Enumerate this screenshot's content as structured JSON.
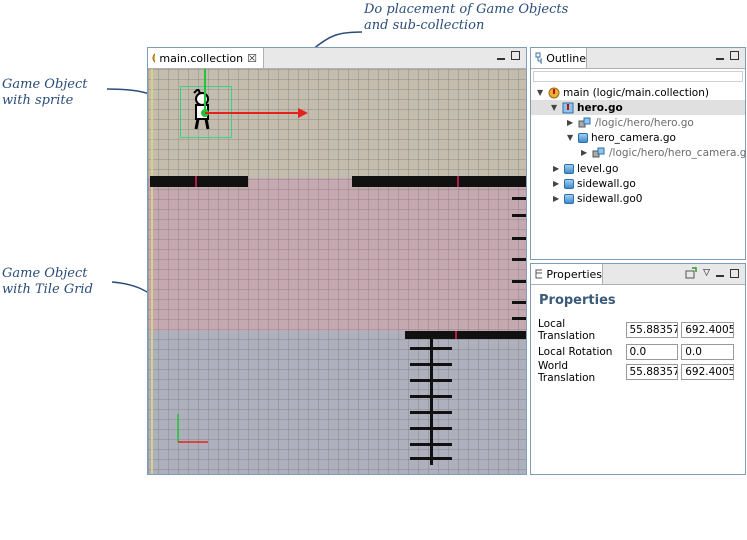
{
  "annotations": {
    "top": [
      "Do placement of Game Objects",
      "and sub-collection"
    ],
    "sprite": [
      "Game Object",
      "with sprite"
    ],
    "tilegrid": [
      "Game Object",
      "with Tile Grid"
    ]
  },
  "editor": {
    "tab_label": "main.collection",
    "close_glyph": "☒"
  },
  "outline": {
    "tab_label": "Outline",
    "items": [
      {
        "label": "main (logic/main.collection)",
        "icon": "collection-warning-icon"
      },
      {
        "label": "hero.go",
        "icon": "game-object-warning-icon",
        "selected": true
      },
      {
        "label": "/logic/hero/hero.go",
        "icon": "link-icon"
      },
      {
        "label": "hero_camera.go",
        "icon": "game-object-icon"
      },
      {
        "label": "/logic/hero/hero_camera.go",
        "icon": "link-icon"
      },
      {
        "label": "level.go",
        "icon": "game-object-icon"
      },
      {
        "label": "sidewall.go",
        "icon": "game-object-icon"
      },
      {
        "label": "sidewall.go0",
        "icon": "game-object-icon"
      }
    ]
  },
  "properties": {
    "tab_label": "Properties",
    "heading": "Properties",
    "rows": [
      {
        "label": "Local Translation",
        "x": "55.88357",
        "y": "692.4005"
      },
      {
        "label": "Local Rotation",
        "x": "0.0",
        "y": "0.0"
      },
      {
        "label": "World Translation",
        "x": "55.88357",
        "y": "692.4005"
      }
    ]
  },
  "colors": {
    "sky": "#c4bcad",
    "wall": "#c6a8b0",
    "ground": "#aeb0bd",
    "selection_row": "#e0e0e0",
    "annotation": "#2a4d7a"
  }
}
